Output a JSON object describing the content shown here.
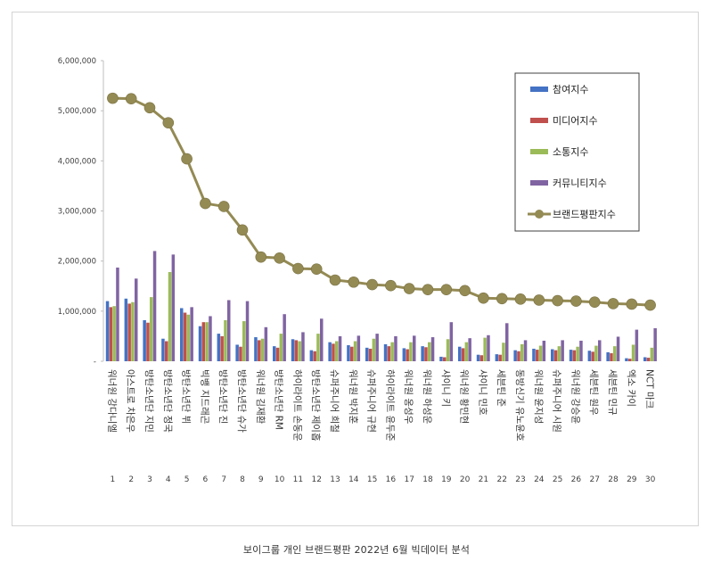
{
  "caption": "보이그룹 개인 브랜드평판  2022년 6월 빅데이터 분석",
  "colors": {
    "participation": "#4472c4",
    "media": "#c0504d",
    "communication": "#9bbb59",
    "community": "#8064a2",
    "brand": "#948a54",
    "frame": "#d4d4d4",
    "grid": "#bfbfbf"
  },
  "chart_data": {
    "type": "bar",
    "title": "",
    "xlabel": "",
    "ylabel": "",
    "ylim": [
      0,
      6000000
    ],
    "yticks": [
      "-",
      "1,000,000",
      "2,000,000",
      "3,000,000",
      "4,000,000",
      "5,000,000",
      "6,000,000"
    ],
    "grid": false,
    "legend_position": "top-right",
    "categories": [
      "워너원 강다니엘",
      "아스트로 차은우",
      "방탄소년단 지민",
      "방탄소년단 정국",
      "방탄소년단 뷔",
      "빅뱅 지드래곤",
      "방탄소년단 진",
      "방탄소년단 슈가",
      "워너원 김재환",
      "방탄소년단 RM",
      "하이라이트 손동운",
      "방탄소년단 제이홉",
      "슈퍼주니어 희철",
      "워너원 박지훈",
      "슈퍼주니어 규현",
      "하이라이트 윤두준",
      "워너원 옹성우",
      "워너원 하성운",
      "샤이니 키",
      "워너원 황민현",
      "샤이니 민호",
      "세븐틴 준",
      "동방신기 유노윤호",
      "워너원 윤지성",
      "슈퍼주니어 시원",
      "워너원 강승윤",
      "세븐틴 원우",
      "세븐틴 민규",
      "엑소 카이",
      "NCT 마크"
    ],
    "ranks": [
      "1",
      "2",
      "3",
      "4",
      "5",
      "6",
      "7",
      "8",
      "9",
      "10",
      "11",
      "12",
      "13",
      "14",
      "15",
      "16",
      "17",
      "18",
      "19",
      "20",
      "21",
      "22",
      "23",
      "24",
      "25",
      "26",
      "27",
      "28",
      "29",
      "30"
    ],
    "series": [
      {
        "name": "참여지수",
        "kind": "bar",
        "values": [
          1200000,
          1250000,
          820000,
          450000,
          1060000,
          700000,
          550000,
          330000,
          480000,
          300000,
          440000,
          220000,
          380000,
          320000,
          270000,
          340000,
          260000,
          300000,
          90000,
          290000,
          130000,
          140000,
          220000,
          250000,
          240000,
          230000,
          210000,
          180000,
          60000,
          80000
        ]
      },
      {
        "name": "미디어지수",
        "kind": "bar",
        "values": [
          1080000,
          1150000,
          770000,
          400000,
          970000,
          780000,
          500000,
          290000,
          420000,
          270000,
          420000,
          200000,
          350000,
          290000,
          250000,
          300000,
          240000,
          280000,
          80000,
          260000,
          120000,
          130000,
          200000,
          230000,
          220000,
          220000,
          190000,
          160000,
          50000,
          70000
        ]
      },
      {
        "name": "소통지수",
        "kind": "bar",
        "values": [
          1100000,
          1180000,
          1280000,
          1780000,
          930000,
          780000,
          820000,
          800000,
          450000,
          550000,
          400000,
          550000,
          400000,
          400000,
          450000,
          380000,
          380000,
          380000,
          440000,
          380000,
          470000,
          370000,
          340000,
          310000,
          300000,
          290000,
          310000,
          300000,
          330000,
          270000
        ]
      },
      {
        "name": "커뮤니티지수",
        "kind": "bar",
        "values": [
          1870000,
          1650000,
          2200000,
          2130000,
          1080000,
          900000,
          1220000,
          1200000,
          680000,
          940000,
          580000,
          850000,
          500000,
          510000,
          550000,
          500000,
          510000,
          480000,
          780000,
          460000,
          520000,
          760000,
          420000,
          410000,
          420000,
          410000,
          420000,
          490000,
          630000,
          660000
        ]
      },
      {
        "name": "브랜드평판지수",
        "kind": "line",
        "values": [
          5250000,
          5240000,
          5060000,
          4760000,
          4040000,
          3150000,
          3090000,
          2620000,
          2080000,
          2060000,
          1850000,
          1840000,
          1620000,
          1580000,
          1530000,
          1510000,
          1450000,
          1430000,
          1430000,
          1410000,
          1260000,
          1250000,
          1240000,
          1220000,
          1210000,
          1200000,
          1180000,
          1150000,
          1140000,
          1120000
        ]
      }
    ]
  }
}
